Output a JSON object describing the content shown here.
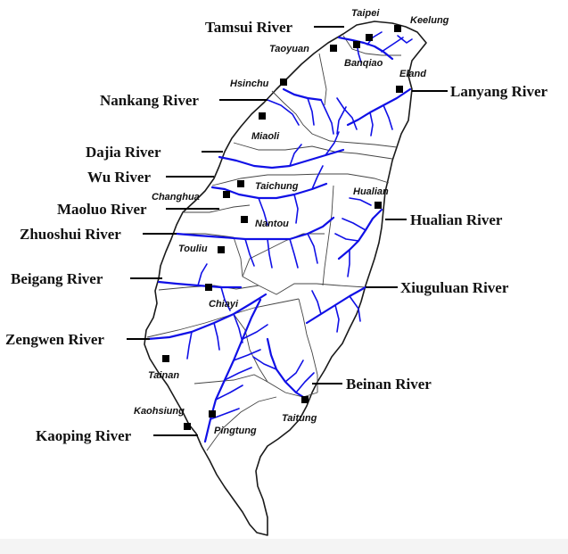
{
  "map": {
    "colors": {
      "river": "#1010e6",
      "coast": "#1a1a1a",
      "marker": "#000000"
    },
    "cities": [
      {
        "id": "taipei",
        "label": "Taipei"
      },
      {
        "id": "keelung",
        "label": "Keelung"
      },
      {
        "id": "taoyuan",
        "label": "Taoyuan"
      },
      {
        "id": "banqiao",
        "label": "Banqiao"
      },
      {
        "id": "hsinchu",
        "label": "Hsinchu"
      },
      {
        "id": "eland",
        "label": "Eland"
      },
      {
        "id": "miaoli",
        "label": "Miaoli"
      },
      {
        "id": "taichung",
        "label": "Taichung"
      },
      {
        "id": "changhua",
        "label": "Changhua"
      },
      {
        "id": "hualian",
        "label": "Hualian"
      },
      {
        "id": "nantou",
        "label": "Nantou"
      },
      {
        "id": "touliu",
        "label": "Touliu"
      },
      {
        "id": "chiayi",
        "label": "Chiayi"
      },
      {
        "id": "tainan",
        "label": "Tainan"
      },
      {
        "id": "kaohsiung",
        "label": "Kaohsiung"
      },
      {
        "id": "pingtung",
        "label": "Pingtung"
      },
      {
        "id": "taitung",
        "label": "Taitung"
      }
    ],
    "rivers": [
      {
        "id": "tamsui",
        "label": "Tamsui River"
      },
      {
        "id": "nankang",
        "label": "Nankang River"
      },
      {
        "id": "lanyang",
        "label": "Lanyang River"
      },
      {
        "id": "dajia",
        "label": "Dajia River"
      },
      {
        "id": "wu",
        "label": "Wu River"
      },
      {
        "id": "maoluo",
        "label": "Maoluo River"
      },
      {
        "id": "hualian",
        "label": "Hualian River"
      },
      {
        "id": "zhuoshui",
        "label": "Zhuoshui River"
      },
      {
        "id": "beigang",
        "label": "Beigang River"
      },
      {
        "id": "xiuguluan",
        "label": "Xiuguluan River"
      },
      {
        "id": "zengwen",
        "label": "Zengwen River"
      },
      {
        "id": "beinan",
        "label": "Beinan River"
      },
      {
        "id": "kaoping",
        "label": "Kaoping River"
      }
    ]
  }
}
